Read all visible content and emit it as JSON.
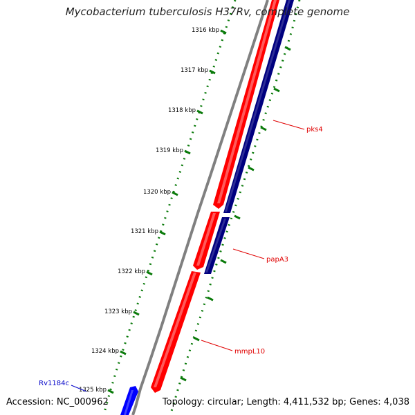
{
  "header": {
    "title": "Mycobacterium tuberculosis H37Rv, complete genome"
  },
  "footer": {
    "accession": "Accession: NC_000962",
    "summary": "Topology: circular; Length: 4,411,532 bp; Genes: 4,038"
  },
  "colors": {
    "backbone": "#808080",
    "forward_cds": "#ff0000",
    "reverse_cds": "#00007f",
    "other_cds": "#0000ff",
    "ticks": "#0a7a0a",
    "label_red": "#e00000",
    "label_blue": "#0000c8"
  },
  "ruler": {
    "ticks": [
      {
        "label": "1316 kbp"
      },
      {
        "label": "1317 kbp"
      },
      {
        "label": "1318 kbp"
      },
      {
        "label": "1319 kbp"
      },
      {
        "label": "1320 kbp"
      },
      {
        "label": "1321 kbp"
      },
      {
        "label": "1322 kbp"
      },
      {
        "label": "1323 kbp"
      },
      {
        "label": "1324 kbp"
      },
      {
        "label": "1325 kbp"
      }
    ]
  },
  "features": [
    {
      "name": "pks4",
      "strand": "reverse"
    },
    {
      "name": "papA3",
      "strand": "reverse"
    },
    {
      "name": "mmpL10",
      "strand": "forward"
    },
    {
      "name": "Rv1184c",
      "strand": "other"
    }
  ]
}
